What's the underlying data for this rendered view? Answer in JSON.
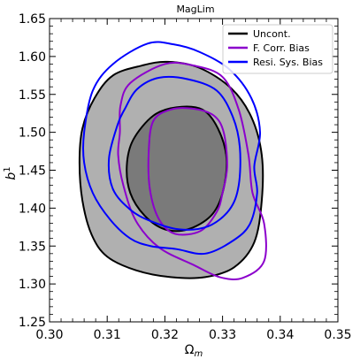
{
  "chart_data": {
    "type": "contour",
    "title": "MagLim",
    "xlabel": "Ω_m",
    "ylabel": "b^1",
    "xlim": [
      0.3,
      0.35
    ],
    "ylim": [
      1.25,
      1.65
    ],
    "xticks": [
      "0.30",
      "0.31",
      "0.32",
      "0.33",
      "0.34",
      "0.35"
    ],
    "yticks": [
      "1.25",
      "1.30",
      "1.35",
      "1.40",
      "1.45",
      "1.50",
      "1.55",
      "1.60",
      "1.65"
    ],
    "grid": false,
    "legend_position": "top-right",
    "series": [
      {
        "name": "Uncont.",
        "color": "#000000",
        "fill_outer": "#b0b0b0",
        "fill_inner": "#7a7a7a",
        "contours": {
          "outer": [
            [
              0.3057,
              1.505
            ],
            [
              0.3078,
              1.545
            ],
            [
              0.311,
              1.575
            ],
            [
              0.316,
              1.588
            ],
            [
              0.3205,
              1.593
            ],
            [
              0.326,
              1.585
            ],
            [
              0.3315,
              1.558
            ],
            [
              0.335,
              1.52
            ],
            [
              0.3368,
              1.47
            ],
            [
              0.3368,
              1.41
            ],
            [
              0.3355,
              1.355
            ],
            [
              0.332,
              1.322
            ],
            [
              0.327,
              1.309
            ],
            [
              0.321,
              1.309
            ],
            [
              0.315,
              1.318
            ],
            [
              0.31,
              1.336
            ],
            [
              0.3073,
              1.365
            ],
            [
              0.3057,
              1.41
            ],
            [
              0.3052,
              1.46
            ]
          ],
          "inner": [
            [
              0.3134,
              1.456
            ],
            [
              0.3145,
              1.49
            ],
            [
              0.318,
              1.522
            ],
            [
              0.322,
              1.533
            ],
            [
              0.3265,
              1.53
            ],
            [
              0.3292,
              1.505
            ],
            [
              0.3307,
              1.465
            ],
            [
              0.33,
              1.42
            ],
            [
              0.328,
              1.39
            ],
            [
              0.324,
              1.372
            ],
            [
              0.32,
              1.372
            ],
            [
              0.3165,
              1.39
            ],
            [
              0.314,
              1.42
            ]
          ]
        }
      },
      {
        "name": "F. Corr. Bias",
        "color": "#8b00cc",
        "contours": {
          "outer": [
            [
              0.3122,
              1.5
            ],
            [
              0.3123,
              1.535
            ],
            [
              0.314,
              1.565
            ],
            [
              0.32,
              1.59
            ],
            [
              0.325,
              1.588
            ],
            [
              0.33,
              1.573
            ],
            [
              0.3328,
              1.53
            ],
            [
              0.3345,
              1.47
            ],
            [
              0.3352,
              1.42
            ],
            [
              0.3372,
              1.38
            ],
            [
              0.3372,
              1.33
            ],
            [
              0.3335,
              1.308
            ],
            [
              0.3295,
              1.309
            ],
            [
              0.325,
              1.325
            ],
            [
              0.319,
              1.348
            ],
            [
              0.315,
              1.383
            ],
            [
              0.3128,
              1.43
            ],
            [
              0.3119,
              1.47
            ]
          ],
          "inner": [
            [
              0.3172,
              1.475
            ],
            [
              0.318,
              1.515
            ],
            [
              0.321,
              1.53
            ],
            [
              0.325,
              1.531
            ],
            [
              0.3285,
              1.522
            ],
            [
              0.3302,
              1.5
            ],
            [
              0.3308,
              1.455
            ],
            [
              0.33,
              1.42
            ],
            [
              0.329,
              1.395
            ],
            [
              0.3262,
              1.37
            ],
            [
              0.3218,
              1.366
            ],
            [
              0.319,
              1.385
            ],
            [
              0.3174,
              1.425
            ]
          ]
        }
      },
      {
        "name": "Resi. Sys. Bias",
        "color": "#0000ff",
        "contours": {
          "outer": [
            [
              0.306,
              1.5
            ],
            [
              0.3075,
              1.555
            ],
            [
              0.311,
              1.59
            ],
            [
              0.317,
              1.617
            ],
            [
              0.3215,
              1.616
            ],
            [
              0.326,
              1.606
            ],
            [
              0.3312,
              1.583
            ],
            [
              0.335,
              1.545
            ],
            [
              0.3365,
              1.5
            ],
            [
              0.3355,
              1.455
            ],
            [
              0.336,
              1.42
            ],
            [
              0.3348,
              1.38
            ],
            [
              0.332,
              1.358
            ],
            [
              0.327,
              1.34
            ],
            [
              0.322,
              1.346
            ],
            [
              0.3175,
              1.35
            ],
            [
              0.314,
              1.36
            ],
            [
              0.3105,
              1.385
            ],
            [
              0.3075,
              1.42
            ],
            [
              0.306,
              1.46
            ]
          ],
          "inner": [
            [
              0.3103,
              1.465
            ],
            [
              0.3118,
              1.51
            ],
            [
              0.313,
              1.53
            ],
            [
              0.3152,
              1.557
            ],
            [
              0.319,
              1.572
            ],
            [
              0.324,
              1.57
            ],
            [
              0.329,
              1.555
            ],
            [
              0.3318,
              1.52
            ],
            [
              0.333,
              1.48
            ],
            [
              0.3328,
              1.43
            ],
            [
              0.3312,
              1.398
            ],
            [
              0.3275,
              1.376
            ],
            [
              0.3225,
              1.372
            ],
            [
              0.3175,
              1.383
            ],
            [
              0.314,
              1.398
            ],
            [
              0.311,
              1.425
            ]
          ]
        }
      }
    ]
  }
}
